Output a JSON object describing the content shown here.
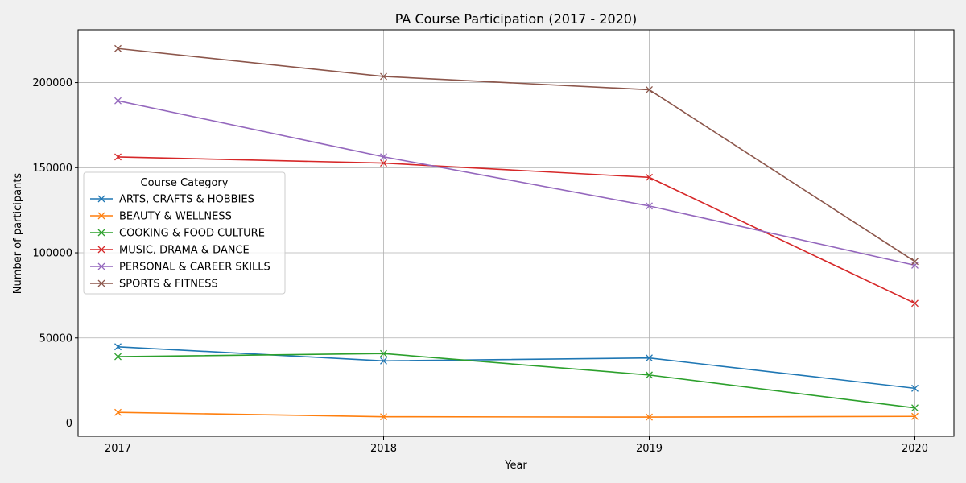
{
  "chart_data": {
    "type": "line",
    "title": "PA Course Participation (2017 - 2020)",
    "xlabel": "Year",
    "ylabel": "Number of participants",
    "x": [
      "2017",
      "2018",
      "2019",
      "2020"
    ],
    "ylim": [
      -7800,
      231000
    ],
    "yticks": [
      0,
      50000,
      100000,
      150000,
      200000
    ],
    "grid": true,
    "legend": {
      "title": "Course Category",
      "placement": "center-left"
    },
    "marker": "x",
    "series": [
      {
        "name": "ARTS, CRAFTS & HOBBIES",
        "color": "#1f77b4",
        "values": [
          44800,
          36500,
          38200,
          20400
        ]
      },
      {
        "name": "BEAUTY & WELLNESS",
        "color": "#ff7f0e",
        "values": [
          6300,
          3700,
          3500,
          3900
        ]
      },
      {
        "name": "COOKING & FOOD CULTURE",
        "color": "#2ca02c",
        "values": [
          39000,
          40800,
          28200,
          8900
        ]
      },
      {
        "name": "MUSIC, DRAMA & DANCE",
        "color": "#d62728",
        "values": [
          156300,
          152700,
          144300,
          70300
        ]
      },
      {
        "name": "PERSONAL & CAREER SKILLS",
        "color": "#9467bd",
        "values": [
          189300,
          156400,
          127500,
          92700
        ]
      },
      {
        "name": "SPORTS & FITNESS",
        "color": "#8c564b",
        "values": [
          220000,
          203600,
          195800,
          94900
        ]
      }
    ]
  }
}
